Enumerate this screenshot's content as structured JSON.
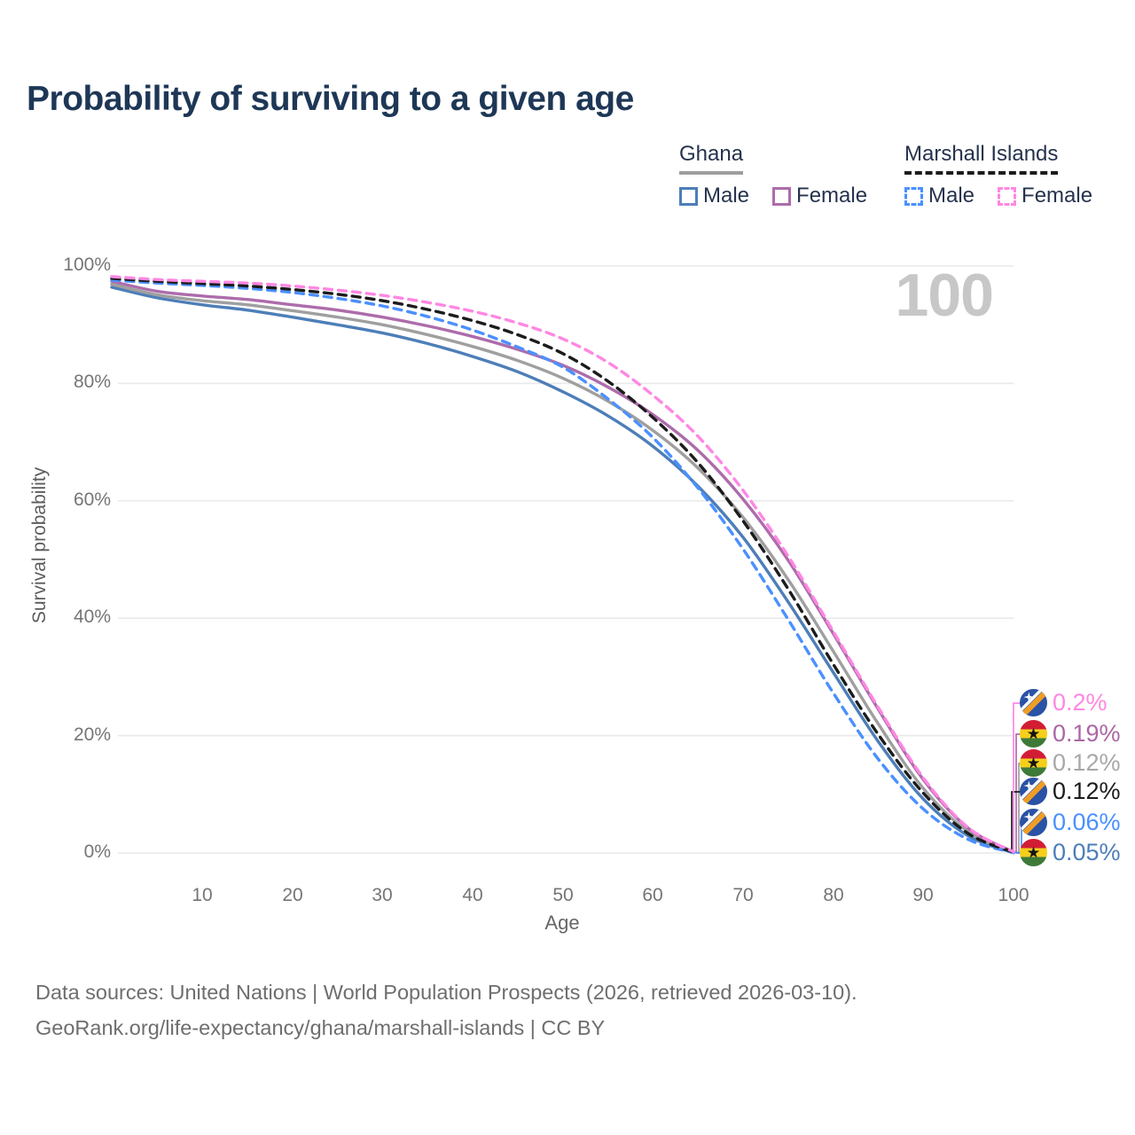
{
  "title": "Probability of surviving to a given age",
  "watermark": "100",
  "legend": {
    "groups": [
      {
        "name": "Ghana",
        "style": "solid",
        "items": [
          {
            "label": "Male"
          },
          {
            "label": "Female"
          }
        ]
      },
      {
        "name": "Marshall Islands",
        "style": "dashed",
        "items": [
          {
            "label": "Male"
          },
          {
            "label": "Female"
          }
        ]
      }
    ]
  },
  "y_axis": {
    "title": "Survival probability",
    "ticks": [
      "100%",
      "80%",
      "60%",
      "40%",
      "20%",
      "0%"
    ]
  },
  "x_axis": {
    "title": "Age",
    "ticks": [
      "10",
      "20",
      "30",
      "40",
      "50",
      "60",
      "70",
      "80",
      "90",
      "100"
    ]
  },
  "end_labels": [
    {
      "flag": "marshall-islands",
      "value": "0.2%",
      "color": "#ff87e3",
      "series": "mi_female"
    },
    {
      "flag": "ghana",
      "value": "0.19%",
      "color": "#aa67a4",
      "series": "gh_female"
    },
    {
      "flag": "ghana",
      "value": "0.12%",
      "color": "#a8a8a8",
      "series": "gh_avg"
    },
    {
      "flag": "marshall-islands",
      "value": "0.12%",
      "color": "#1c1c1c",
      "series": "mi_avg"
    },
    {
      "flag": "marshall-islands",
      "value": "0.06%",
      "color": "#4a90ff",
      "series": "mi_male"
    },
    {
      "flag": "ghana",
      "value": "0.05%",
      "color": "#4d7eb8",
      "series": "gh_male"
    }
  ],
  "footer": {
    "line1": "Data sources: United Nations | World Population Prospects (2026, retrieved 2026-03-10).",
    "line2": "GeoRank.org/life-expectancy/ghana/marshall-islands | CC BY"
  },
  "chart_data": {
    "type": "line",
    "title": "Probability of surviving to a given age",
    "xlabel": "Age",
    "ylabel": "Survival probability",
    "xlim": [
      0,
      100
    ],
    "ylim": [
      0,
      100
    ],
    "grid": "horizontal",
    "legend_position": "top-right",
    "x": [
      0,
      5,
      10,
      15,
      20,
      25,
      30,
      35,
      40,
      45,
      50,
      55,
      60,
      65,
      70,
      75,
      80,
      85,
      90,
      95,
      100
    ],
    "series": [
      {
        "id": "gh_male",
        "name": "Ghana Male",
        "color": "#4d7eb8",
        "dashed": false,
        "values": [
          96.4,
          94.6,
          93.4,
          92.5,
          91.3,
          90.0,
          88.6,
          86.8,
          84.6,
          82.0,
          78.6,
          74.5,
          69.3,
          62.5,
          53.8,
          42.8,
          30.8,
          19.0,
          9.2,
          2.9,
          0.05
        ]
      },
      {
        "id": "gh_avg",
        "name": "Ghana Both sexes",
        "color": "#9f9f9f",
        "dashed": false,
        "values": [
          96.9,
          95.1,
          94.1,
          93.4,
          92.4,
          91.3,
          90.0,
          88.3,
          86.3,
          83.9,
          80.9,
          77.0,
          72.0,
          65.6,
          57.2,
          46.6,
          34.4,
          22.0,
          11.0,
          3.6,
          0.12
        ]
      },
      {
        "id": "gh_female",
        "name": "Ghana Female",
        "color": "#ad6cab",
        "dashed": false,
        "values": [
          97.4,
          95.7,
          94.9,
          94.3,
          93.4,
          92.5,
          91.3,
          89.8,
          88.0,
          85.8,
          83.1,
          79.4,
          74.7,
          68.6,
          60.3,
          49.9,
          37.4,
          24.5,
          12.5,
          4.2,
          0.19
        ]
      },
      {
        "id": "mi_male",
        "name": "Marshall Islands Male",
        "color": "#4a90ff",
        "dashed": true,
        "values": [
          97.6,
          97.1,
          96.7,
          96.2,
          95.5,
          94.5,
          93.2,
          91.4,
          89.1,
          86.2,
          82.8,
          77.4,
          70.8,
          62.2,
          51.8,
          39.8,
          27.3,
          16.0,
          7.5,
          2.3,
          0.06
        ]
      },
      {
        "id": "mi_avg",
        "name": "Marshall Islands Both sexes",
        "color": "#1c1c1c",
        "dashed": true,
        "values": [
          97.9,
          97.4,
          97.0,
          96.6,
          96.0,
          95.2,
          94.1,
          92.6,
          90.7,
          88.3,
          85.1,
          80.4,
          74.2,
          66.5,
          56.6,
          45.0,
          32.2,
          20.2,
          10.2,
          3.3,
          0.12
        ]
      },
      {
        "id": "mi_female",
        "name": "Marshall Islands Female",
        "color": "#ff87e3",
        "dashed": true,
        "values": [
          98.2,
          97.7,
          97.4,
          97.1,
          96.6,
          95.9,
          95.0,
          93.8,
          92.3,
          90.3,
          87.6,
          83.6,
          78.0,
          71.0,
          61.8,
          50.6,
          37.8,
          24.8,
          12.8,
          4.3,
          0.2
        ]
      }
    ]
  }
}
